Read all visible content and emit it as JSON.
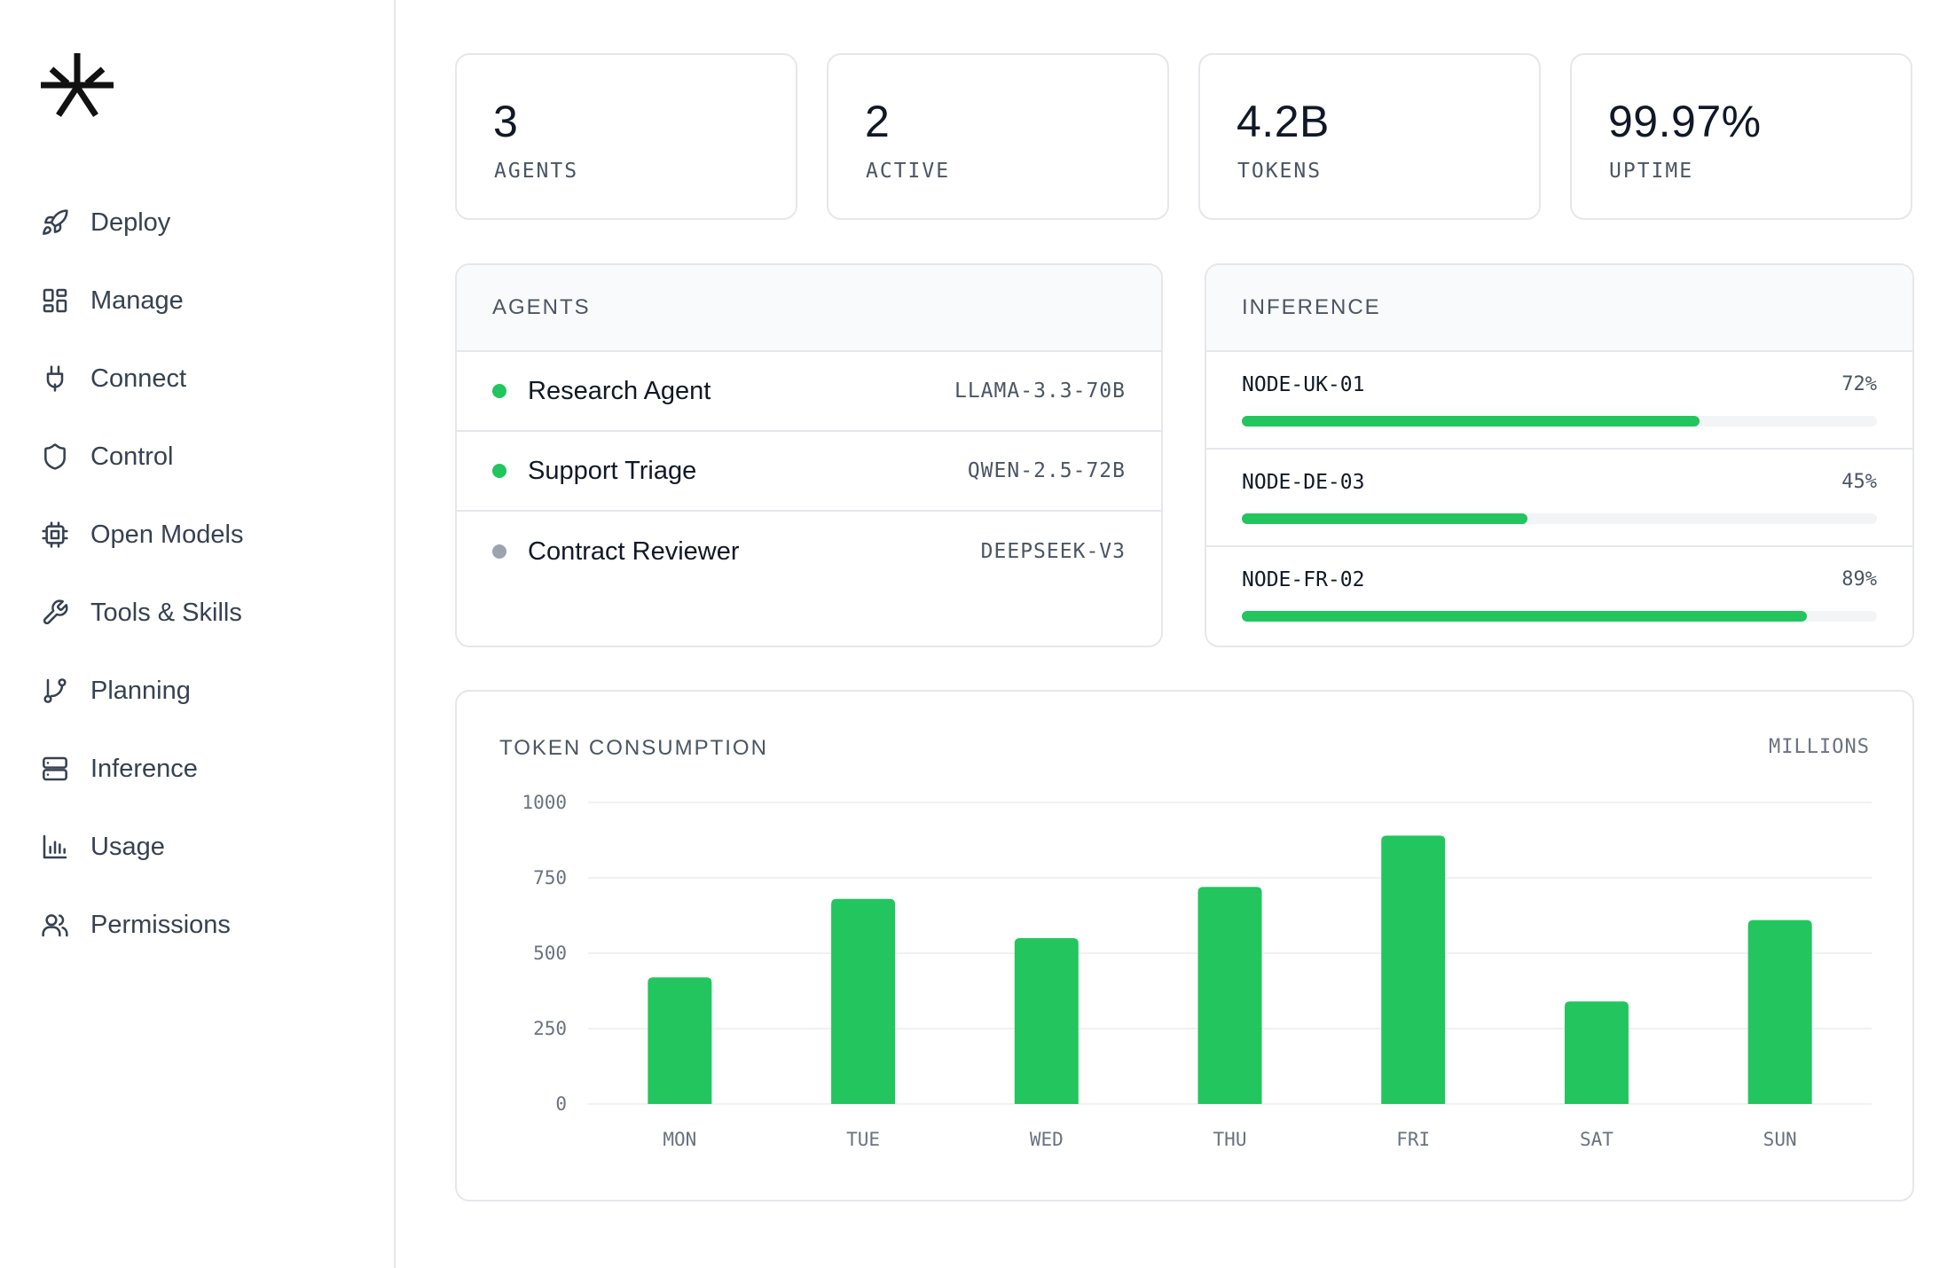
{
  "sidebar": {
    "logo_icon": "asterisk-logo-icon",
    "items": [
      {
        "label": "Deploy",
        "icon": "rocket-icon"
      },
      {
        "label": "Manage",
        "icon": "grid-icon"
      },
      {
        "label": "Connect",
        "icon": "plug-icon"
      },
      {
        "label": "Control",
        "icon": "shield-icon"
      },
      {
        "label": "Open Models",
        "icon": "chip-icon"
      },
      {
        "label": "Tools & Skills",
        "icon": "wrench-icon"
      },
      {
        "label": "Planning",
        "icon": "git-branch-icon"
      },
      {
        "label": "Inference",
        "icon": "server-icon"
      },
      {
        "label": "Usage",
        "icon": "bar-chart-icon"
      },
      {
        "label": "Permissions",
        "icon": "users-icon"
      }
    ]
  },
  "stats": [
    {
      "value": "3",
      "label": "AGENTS"
    },
    {
      "value": "2",
      "label": "ACTIVE"
    },
    {
      "value": "4.2B",
      "label": "TOKENS"
    },
    {
      "value": "99.97%",
      "label": "UPTIME"
    }
  ],
  "agents_panel": {
    "title": "AGENTS",
    "rows": [
      {
        "name": "Research Agent",
        "model": "LLAMA-3.3-70B",
        "status": "active",
        "status_color": "#22c55e"
      },
      {
        "name": "Support Triage",
        "model": "QWEN-2.5-72B",
        "status": "active",
        "status_color": "#22c55e"
      },
      {
        "name": "Contract Reviewer",
        "model": "DEEPSEEK-V3",
        "status": "idle",
        "status_color": "#9ca3af"
      }
    ]
  },
  "inference_panel": {
    "title": "INFERENCE",
    "nodes": [
      {
        "name": "NODE-UK-01",
        "percent_label": "72%",
        "load": 0.72
      },
      {
        "name": "NODE-DE-03",
        "percent_label": "45%",
        "load": 0.45
      },
      {
        "name": "NODE-FR-02",
        "percent_label": "89%",
        "load": 0.89
      }
    ]
  },
  "colors": {
    "accent": "#22c55e",
    "idle": "#9ca3af",
    "border": "#e5e7eb"
  },
  "chart_data": {
    "type": "bar",
    "title": "TOKEN CONSUMPTION",
    "unit_label": "MILLIONS",
    "categories": [
      "MON",
      "TUE",
      "WED",
      "THU",
      "FRI",
      "SAT",
      "SUN"
    ],
    "values": [
      420,
      680,
      550,
      720,
      890,
      340,
      610
    ],
    "yticks": [
      "0",
      "250",
      "500",
      "750",
      "1000"
    ],
    "ylim": [
      0,
      1000
    ],
    "grid": true,
    "color": "#22c55e"
  }
}
